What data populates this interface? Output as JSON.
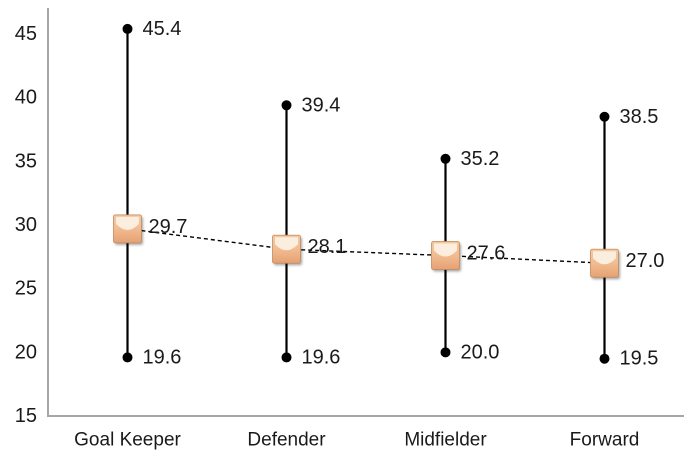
{
  "chart_data": {
    "type": "line",
    "variant": "high-low-mean stock chart",
    "title": "",
    "xlabel": "",
    "ylabel": "",
    "categories": [
      "Goal Keeper",
      "Defender",
      "Midfielder",
      "Forward"
    ],
    "series": [
      {
        "name": "High",
        "role": "high",
        "values": [
          45.4,
          39.4,
          35.2,
          38.5
        ]
      },
      {
        "name": "Mean",
        "role": "mean",
        "values": [
          29.7,
          28.1,
          27.6,
          27.0
        ]
      },
      {
        "name": "Low",
        "role": "low",
        "values": [
          19.6,
          19.6,
          20.0,
          19.5
        ]
      }
    ],
    "data_label_decimals": 1,
    "yticks": [
      15,
      20,
      25,
      30,
      35,
      40,
      45
    ],
    "ylim": [
      15,
      45
    ],
    "grid": false,
    "legend": "none",
    "mean_connector": "dashed"
  },
  "style": {
    "background": "#FFFFFF",
    "axis_color": "#A6A6A6",
    "range_line_color": "#000000",
    "dot_color": "#000000",
    "dashed_line_color": "#000000",
    "text_color": "#1A1A1A",
    "marker_fill_top": "#F6C99F",
    "marker_fill_mid": "#F2BE93",
    "marker_fill_bottom": "#E6A173",
    "marker_highlight": "#FCEEDF",
    "marker_border": "#C08A5E"
  }
}
